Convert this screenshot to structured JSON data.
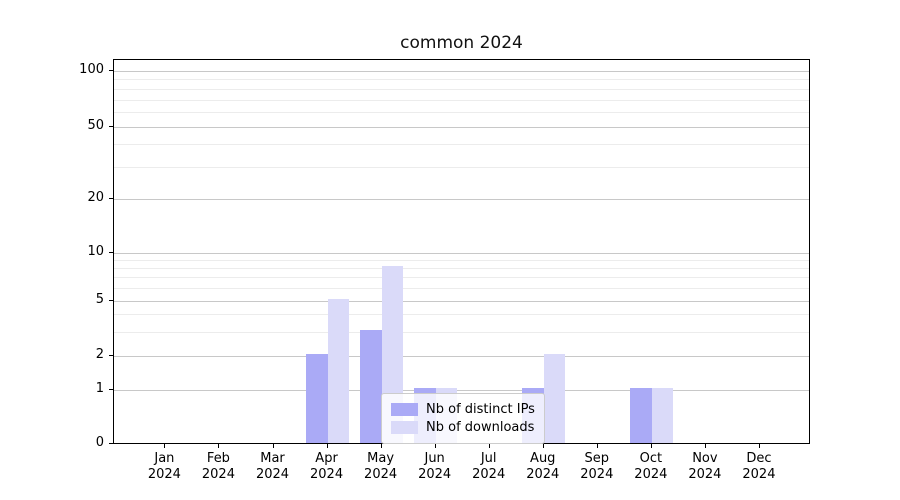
{
  "chart_data": {
    "type": "bar",
    "title": "common 2024",
    "categories": [
      "Jan 2024",
      "Feb 2024",
      "Mar 2024",
      "Apr 2024",
      "May 2024",
      "Jun 2024",
      "Jul 2024",
      "Aug 2024",
      "Sep 2024",
      "Oct 2024",
      "Nov 2024",
      "Dec 2024"
    ],
    "series": [
      {
        "name": "Nb of distinct IPs",
        "color": "#aaaaf6",
        "values": [
          0,
          0,
          0,
          2,
          3,
          1,
          0,
          1,
          0,
          1,
          0,
          0
        ]
      },
      {
        "name": "Nb of downloads",
        "color": "#dadaf9",
        "values": [
          0,
          0,
          0,
          5,
          8,
          1,
          0,
          2,
          0,
          1,
          0,
          0
        ]
      }
    ],
    "xlabel": "",
    "ylabel": "",
    "yticks": [
      0,
      1,
      2,
      5,
      10,
      20,
      50,
      100
    ],
    "ytick_labels": [
      "0",
      "1",
      "2",
      "5",
      "10",
      "20",
      "50",
      "100"
    ],
    "minor_grid_values": [
      3,
      4,
      6,
      7,
      8,
      9,
      30,
      40,
      60,
      70,
      80,
      90
    ],
    "ylim": [
      0,
      115
    ],
    "scale": "log-like",
    "grid": "horizontal major and minor",
    "legend_position": "lower center",
    "colors": {
      "bar_distinct_ips": "#aaaaf6",
      "bar_downloads": "#dadaf9",
      "grid_major": "#c8c8c8",
      "grid_minor": "#ececec",
      "spine": "#000000",
      "background": "#ffffff"
    }
  }
}
